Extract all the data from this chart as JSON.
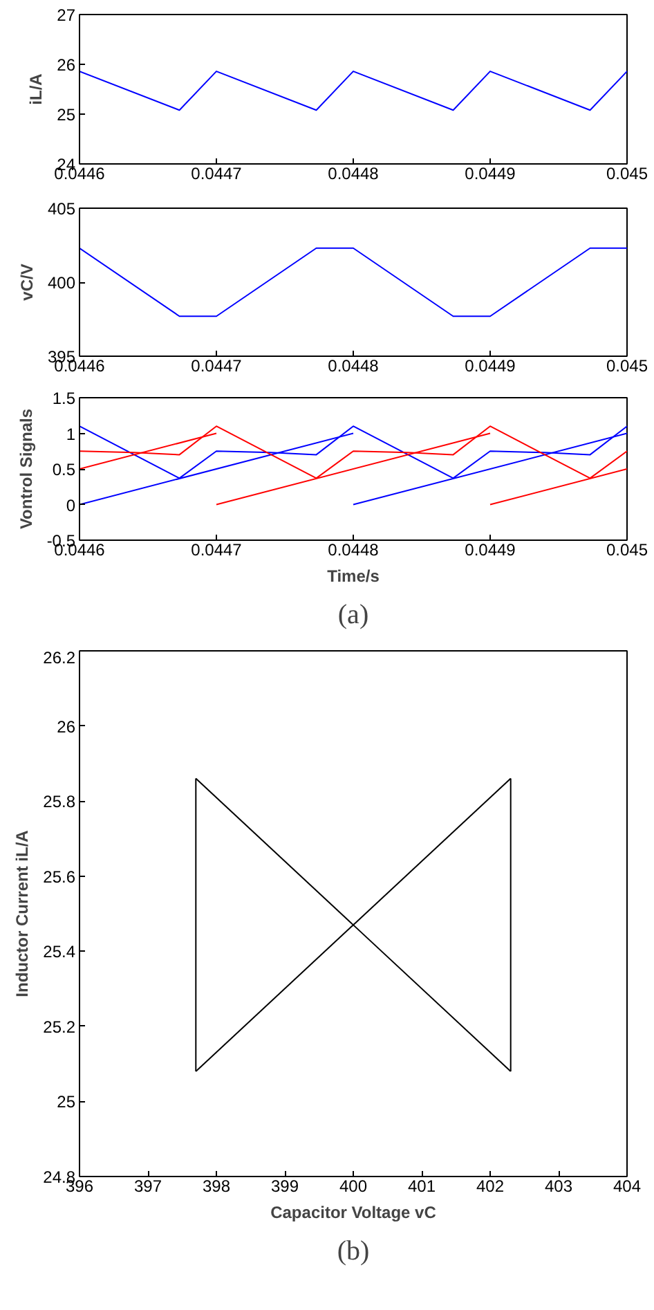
{
  "chart_data": [
    {
      "type": "line",
      "ylabel": "iL/A",
      "xlim": [
        0.0446,
        0.045
      ],
      "ylim": [
        24,
        27
      ],
      "xticks": [
        0.0446,
        0.0447,
        0.0448,
        0.0449,
        0.045
      ],
      "yticks": [
        24,
        25,
        26,
        27
      ],
      "grid": false,
      "x": [
        0.0446,
        0.044673,
        0.0447,
        0.044773,
        0.0448,
        0.044873,
        0.0449,
        0.044973,
        0.045
      ],
      "series": [
        {
          "color": "#0000ff",
          "values": [
            25.86,
            25.08,
            25.86,
            25.08,
            25.86,
            25.08,
            25.86,
            25.08,
            25.86
          ]
        }
      ]
    },
    {
      "type": "line",
      "ylabel": "vC/V",
      "xlim": [
        0.0446,
        0.045
      ],
      "ylim": [
        395,
        405
      ],
      "xticks": [
        0.0446,
        0.0447,
        0.0448,
        0.0449,
        0.045
      ],
      "yticks": [
        395,
        400,
        405
      ],
      "grid": false,
      "x": [
        0.0446,
        0.044673,
        0.0447,
        0.044773,
        0.0448,
        0.044873,
        0.0449,
        0.044973,
        0.045
      ],
      "series": [
        {
          "color": "#0000ff",
          "values": [
            402.3,
            397.7,
            397.7,
            402.3,
            402.3,
            397.7,
            397.7,
            402.3,
            402.3
          ]
        }
      ]
    },
    {
      "type": "line",
      "ylabel": "Vontrol Signals",
      "xlabel": "Time/s",
      "annotations": [
        "(a)"
      ],
      "xlim": [
        0.0446,
        0.045
      ],
      "ylim": [
        -0.5,
        1.5
      ],
      "xticks": [
        0.0446,
        0.0447,
        0.0448,
        0.0449,
        0.045
      ],
      "yticks": [
        -0.5,
        0,
        0.5,
        1,
        1.5
      ],
      "grid": false,
      "series": [
        {
          "color": "#0000ff",
          "x": [
            0.0446,
            0.0448
          ],
          "values": [
            0,
            1.0
          ]
        },
        {
          "color": "#0000ff",
          "x": [
            0.0448,
            0.045
          ],
          "values": [
            0,
            1.0
          ]
        },
        {
          "color": "#0000ff",
          "x": [
            0.0446,
            0.044673,
            0.0447,
            0.04474,
            0.044773,
            0.0448,
            0.044873,
            0.0449,
            0.04494,
            0.044973,
            0.045
          ],
          "values": [
            1.1,
            0.37,
            0.75,
            0.73,
            0.7,
            1.1,
            0.37,
            0.75,
            0.73,
            0.7,
            1.1
          ]
        },
        {
          "color": "#ff0000",
          "x": [
            0.0446,
            0.0447
          ],
          "values": [
            0.5,
            1.0
          ]
        },
        {
          "color": "#ff0000",
          "x": [
            0.0447,
            0.0449
          ],
          "values": [
            0,
            1.0
          ]
        },
        {
          "color": "#ff0000",
          "x": [
            0.0449,
            0.045
          ],
          "values": [
            0,
            0.5
          ]
        },
        {
          "color": "#ff0000",
          "x": [
            0.0446,
            0.04464,
            0.044673,
            0.0447,
            0.044773,
            0.0448,
            0.04484,
            0.044873,
            0.0449,
            0.044973,
            0.045
          ],
          "values": [
            0.75,
            0.73,
            0.7,
            1.1,
            0.37,
            0.75,
            0.73,
            0.7,
            1.1,
            0.37,
            0.75
          ]
        }
      ]
    },
    {
      "type": "line",
      "xlabel": "Capacitor Voltage vC",
      "ylabel": "Inductor Current iL/A",
      "annotations": [
        "(b)"
      ],
      "xlim": [
        396,
        404
      ],
      "ylim": [
        24.8,
        26.2
      ],
      "xticks": [
        396,
        397,
        398,
        399,
        400,
        401,
        402,
        403,
        404
      ],
      "yticks": [
        24.8,
        25,
        25.2,
        25.4,
        25.6,
        25.8,
        26,
        26.2
      ],
      "grid": false,
      "series": [
        {
          "color": "#000000",
          "x": [
            397.7,
            402.3
          ],
          "values": [
            25.08,
            25.86
          ]
        },
        {
          "color": "#000000",
          "x": [
            397.7,
            402.3
          ],
          "values": [
            25.86,
            25.08
          ]
        },
        {
          "color": "#000000",
          "x": [
            397.7,
            397.7
          ],
          "values": [
            25.08,
            25.86
          ]
        },
        {
          "color": "#000000",
          "x": [
            402.3,
            402.3
          ],
          "values": [
            25.08,
            25.86
          ]
        }
      ]
    }
  ]
}
